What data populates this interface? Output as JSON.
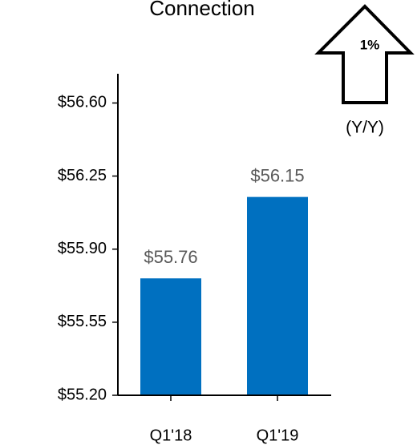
{
  "chart_data": {
    "type": "bar",
    "title": "Connection",
    "categories": [
      "Q1'18",
      "Q1'19"
    ],
    "values": [
      55.76,
      56.15
    ],
    "value_labels": [
      "$55.76",
      "$56.15"
    ],
    "color": "#0070c0",
    "ylim": [
      55.2,
      56.74
    ],
    "yticks": [
      {
        "value": 55.2,
        "label": "$55.20"
      },
      {
        "value": 55.55,
        "label": "$55.55"
      },
      {
        "value": 55.9,
        "label": "$55.90"
      },
      {
        "value": 56.25,
        "label": "$56.25"
      },
      {
        "value": 56.6,
        "label": "$56.60"
      }
    ],
    "annotation": {
      "change": "1%",
      "period": "(Y/Y)"
    }
  }
}
